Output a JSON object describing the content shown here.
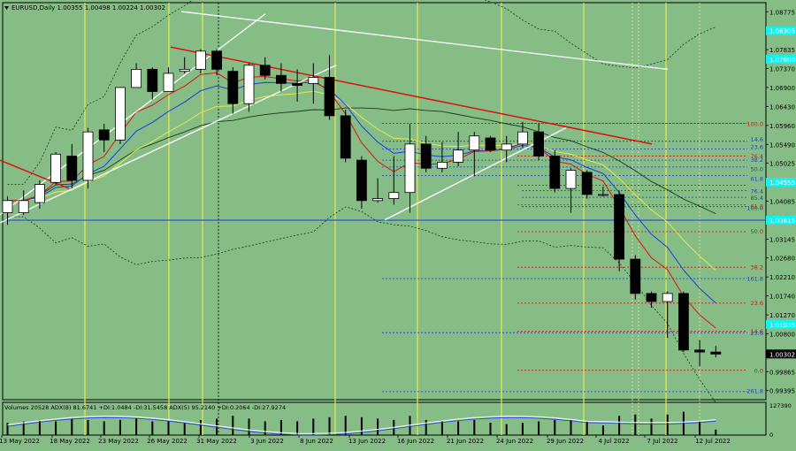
{
  "chart_data": {
    "type": "candlestick",
    "title": "EURUSD,Daily  1.00355 1.00498 1.00224 1.00302",
    "last_price_label": "1.00302",
    "x_labels": [
      "13 May 2022",
      "18 May 2022",
      "23 May 2022",
      "26 May 2022",
      "31 May 2022",
      "3 Jun 2022",
      "8 Jun 2022",
      "13 Jun 2022",
      "16 Jun 2022",
      "21 Jun 2022",
      "24 Jun 2022",
      "29 Jun 2022",
      "4 Jul 2022",
      "7 Jul 2022",
      "12 Jul 2022"
    ],
    "y_ticks": [
      "1.08775",
      "1.07835",
      "1.07370",
      "1.06900",
      "1.06430",
      "1.05960",
      "1.05490",
      "1.05025",
      "1.04085",
      "1.03615",
      "1.03145",
      "1.02680",
      "1.02210",
      "1.01740",
      "1.01270",
      "1.00800",
      "0.99865",
      "0.99395"
    ],
    "highlight_ticks": [
      "1.08305",
      "1.07600",
      "1.04555",
      "1.03615",
      "1.01035"
    ],
    "ylim": [
      0.9917,
      1.09
    ],
    "candles": [
      {
        "d": "12 May",
        "o": 1.038,
        "h": 1.042,
        "l": 1.035,
        "c": 1.041
      },
      {
        "d": "13 May",
        "o": 1.038,
        "h": 1.0435,
        "l": 1.0375,
        "c": 1.041
      },
      {
        "d": "16 May",
        "o": 1.0405,
        "h": 1.046,
        "l": 1.039,
        "c": 1.045
      },
      {
        "d": "17 May",
        "o": 1.0455,
        "h": 1.053,
        "l": 1.045,
        "c": 1.0525
      },
      {
        "d": "18 May",
        "o": 1.052,
        "h": 1.055,
        "l": 1.044,
        "c": 1.046
      },
      {
        "d": "19 May",
        "o": 1.046,
        "h": 1.059,
        "l": 1.044,
        "c": 1.058
      },
      {
        "d": "20 May",
        "o": 1.0585,
        "h": 1.06,
        "l": 1.053,
        "c": 1.056
      },
      {
        "d": "23 May",
        "o": 1.056,
        "h": 1.069,
        "l": 1.055,
        "c": 1.069
      },
      {
        "d": "24 May",
        "o": 1.069,
        "h": 1.075,
        "l": 1.069,
        "c": 1.0735
      },
      {
        "d": "25 May",
        "o": 1.0735,
        "h": 1.074,
        "l": 1.066,
        "c": 1.068
      },
      {
        "d": "26 May",
        "o": 1.068,
        "h": 1.074,
        "l": 1.068,
        "c": 1.0725
      },
      {
        "d": "27 May",
        "o": 1.073,
        "h": 1.0765,
        "l": 1.0725,
        "c": 1.0735
      },
      {
        "d": "30 May",
        "o": 1.0735,
        "h": 1.0785,
        "l": 1.0725,
        "c": 1.078
      },
      {
        "d": "31 May",
        "o": 1.078,
        "h": 1.0785,
        "l": 1.072,
        "c": 1.0735
      },
      {
        "d": "1 Jun",
        "o": 1.073,
        "h": 1.074,
        "l": 1.0625,
        "c": 1.065
      },
      {
        "d": "2 Jun",
        "o": 1.065,
        "h": 1.075,
        "l": 1.063,
        "c": 1.0745
      },
      {
        "d": "3 Jun",
        "o": 1.0745,
        "h": 1.0765,
        "l": 1.071,
        "c": 1.072
      },
      {
        "d": "6 Jun",
        "o": 1.072,
        "h": 1.075,
        "l": 1.068,
        "c": 1.07
      },
      {
        "d": "7 Jun",
        "o": 1.07,
        "h": 1.0735,
        "l": 1.0655,
        "c": 1.0695
      },
      {
        "d": "8 Jun",
        "o": 1.07,
        "h": 1.075,
        "l": 1.065,
        "c": 1.0715
      },
      {
        "d": "9 Jun",
        "o": 1.0715,
        "h": 1.077,
        "l": 1.061,
        "c": 1.062
      },
      {
        "d": "10 Jun",
        "o": 1.062,
        "h": 1.0635,
        "l": 1.0505,
        "c": 1.0515
      },
      {
        "d": "13 Jun",
        "o": 1.051,
        "h": 1.052,
        "l": 1.039,
        "c": 1.041
      },
      {
        "d": "14 Jun",
        "o": 1.041,
        "h": 1.0465,
        "l": 1.0405,
        "c": 1.0415
      },
      {
        "d": "15 Jun",
        "o": 1.0415,
        "h": 1.052,
        "l": 1.04,
        "c": 1.043
      },
      {
        "d": "16 Jun",
        "o": 1.043,
        "h": 1.06,
        "l": 1.038,
        "c": 1.055
      },
      {
        "d": "17 Jun",
        "o": 1.055,
        "h": 1.057,
        "l": 1.048,
        "c": 1.049
      },
      {
        "d": "20 Jun",
        "o": 1.049,
        "h": 1.0555,
        "l": 1.048,
        "c": 1.0505
      },
      {
        "d": "21 Jun",
        "o": 1.0505,
        "h": 1.058,
        "l": 1.0495,
        "c": 1.0535
      },
      {
        "d": "22 Jun",
        "o": 1.0535,
        "h": 1.058,
        "l": 1.047,
        "c": 1.057
      },
      {
        "d": "23 Jun",
        "o": 1.0565,
        "h": 1.057,
        "l": 1.053,
        "c": 1.0535
      },
      {
        "d": "24 Jun",
        "o": 1.0535,
        "h": 1.057,
        "l": 1.0505,
        "c": 1.055
      },
      {
        "d": "27 Jun",
        "o": 1.055,
        "h": 1.0605,
        "l": 1.054,
        "c": 1.058
      },
      {
        "d": "28 Jun",
        "o": 1.058,
        "h": 1.06,
        "l": 1.051,
        "c": 1.052
      },
      {
        "d": "29 Jun",
        "o": 1.052,
        "h": 1.0535,
        "l": 1.043,
        "c": 1.044
      },
      {
        "d": "30 Jun",
        "o": 1.044,
        "h": 1.049,
        "l": 1.038,
        "c": 1.0485
      },
      {
        "d": "1 Jul",
        "o": 1.048,
        "h": 1.0485,
        "l": 1.0415,
        "c": 1.0425
      },
      {
        "d": "4 Jul",
        "o": 1.0425,
        "h": 1.0445,
        "l": 1.042,
        "c": 1.0425
      },
      {
        "d": "5 Jul",
        "o": 1.0425,
        "h": 1.0435,
        "l": 1.0235,
        "c": 1.0265
      },
      {
        "d": "6 Jul",
        "o": 1.0265,
        "h": 1.0275,
        "l": 1.0165,
        "c": 1.018
      },
      {
        "d": "7 Jul",
        "o": 1.018,
        "h": 1.0185,
        "l": 1.0145,
        "c": 1.016
      },
      {
        "d": "8 Jul",
        "o": 1.016,
        "h": 1.0185,
        "l": 1.007,
        "c": 1.018
      },
      {
        "d": "11 Jul",
        "o": 1.018,
        "h": 1.0185,
        "l": 1.0035,
        "c": 1.004
      },
      {
        "d": "12 Jul",
        "o": 1.004,
        "h": 1.0065,
        "l": 1.0,
        "c": 1.0035
      },
      {
        "d": "13 Jul",
        "o": 1.0035,
        "h": 1.005,
        "l": 1.0022,
        "c": 1.003
      }
    ],
    "fib_levels_blue": [
      "100.0",
      "14.6",
      "23.6",
      "38.2",
      "50.0",
      "61.8",
      "76.4",
      "85.4",
      "100.0",
      "161.8",
      "261.8"
    ],
    "fib_levels_red": [
      "100.0",
      "76.4",
      "61.8",
      "50.0",
      "38.2",
      "23.6",
      "14.6",
      "0.0",
      "61.8"
    ],
    "indicator_label": "Volumes 20528  ADX(8) 81.6741 +DI:1.0484 -DI:31.5458  ADX(5) 95.2140 +DI:0.2064 -DI:27.9274",
    "indicator_ticks": [
      "127390",
      "0"
    ],
    "volumes": [
      0.45,
      0.5,
      0.55,
      0.5,
      0.6,
      0.55,
      0.5,
      0.55,
      0.6,
      0.5,
      0.5,
      0.45,
      0.55,
      0.6,
      0.7,
      0.6,
      0.5,
      0.55,
      0.5,
      0.6,
      0.65,
      0.7,
      0.65,
      0.6,
      0.55,
      0.7,
      0.55,
      0.5,
      0.5,
      0.55,
      0.45,
      0.4,
      0.45,
      0.5,
      0.55,
      0.55,
      0.5,
      0.35,
      0.7,
      0.75,
      0.6,
      0.75,
      0.85,
      0.5,
      0.2
    ],
    "colors": {
      "background": "#86bd86",
      "bull": "#ffffff",
      "bear": "#000000",
      "blue": "#1a3de0",
      "red": "#e01010",
      "yellow": "#e8e84a",
      "cyan": "#16f0f0"
    }
  }
}
